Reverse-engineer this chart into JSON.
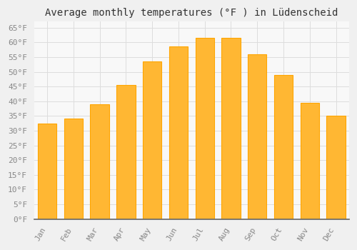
{
  "title": "Average monthly temperatures (°F ) in Lüdenscheid",
  "months": [
    "Jan",
    "Feb",
    "Mar",
    "Apr",
    "May",
    "Jun",
    "Jul",
    "Aug",
    "Sep",
    "Oct",
    "Nov",
    "Dec"
  ],
  "values": [
    32.5,
    34.0,
    39.0,
    45.5,
    53.5,
    58.5,
    61.5,
    61.5,
    56.0,
    49.0,
    39.5,
    35.0
  ],
  "bar_color": "#FFA500",
  "bar_face_color": "#FFB733",
  "background_color": "#F0F0F0",
  "plot_bg_color": "#F8F8F8",
  "grid_color": "#DDDDDD",
  "yticks": [
    0,
    5,
    10,
    15,
    20,
    25,
    30,
    35,
    40,
    45,
    50,
    55,
    60,
    65
  ],
  "ytick_labels": [
    "0°F",
    "5°F",
    "10°F",
    "15°F",
    "20°F",
    "25°F",
    "30°F",
    "35°F",
    "40°F",
    "45°F",
    "50°F",
    "55°F",
    "60°F",
    "65°F"
  ],
  "ylim": [
    0,
    67
  ],
  "title_fontsize": 10,
  "tick_fontsize": 8,
  "tick_color": "#888888",
  "axis_label_rotation": 60
}
